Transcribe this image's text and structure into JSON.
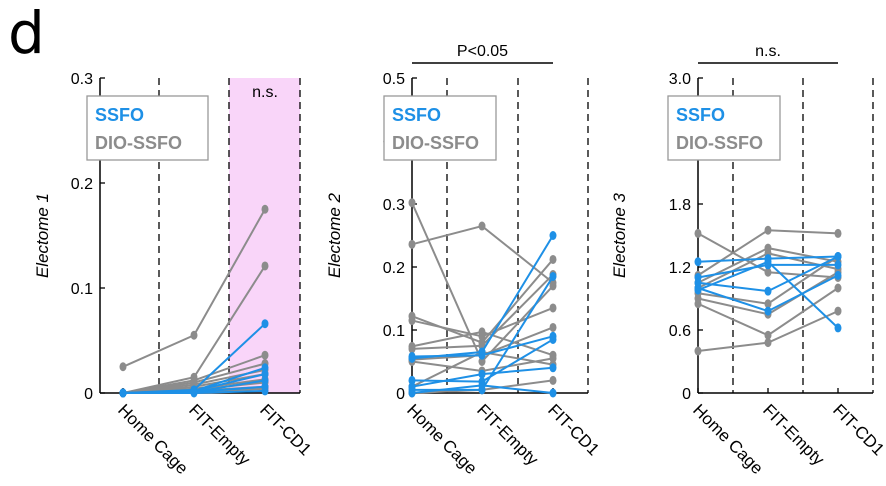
{
  "panel_label": "d",
  "colors": {
    "ssfo": "#1E90E6",
    "dio_ssfo": "#8C8C8C",
    "highlight": "#F9D5F9",
    "axis": "#000000"
  },
  "chart_data": [
    {
      "type": "line",
      "categories": [
        "Home Cage",
        "FIT-Empty",
        "FIT-CD1"
      ],
      "ylabel": "Electome 1",
      "ylim": [
        0,
        0.3
      ],
      "yticks": [
        0,
        0.1,
        0.2,
        0.3
      ],
      "yticklabels": [
        "0",
        "0.1",
        "0.2",
        "0.3"
      ],
      "legend": [
        "SSFO",
        "DIO-SSFO"
      ],
      "legend_placement": "top-left",
      "annotation": {
        "text": "n.s.",
        "placement": "over FIT-CD1 (highlighted)"
      },
      "highlight_category": "FIT-CD1",
      "series": [
        {
          "group": "DIO-SSFO",
          "values": [
            0.025,
            0.055,
            0.175
          ]
        },
        {
          "group": "DIO-SSFO",
          "values": [
            0,
            0.015,
            0.121
          ]
        },
        {
          "group": "DIO-SSFO",
          "values": [
            0,
            0.012,
            0.036
          ]
        },
        {
          "group": "DIO-SSFO",
          "values": [
            0,
            0.01,
            0.028
          ]
        },
        {
          "group": "DIO-SSFO",
          "values": [
            0,
            0.008,
            0.022
          ]
        },
        {
          "group": "DIO-SSFO",
          "values": [
            0,
            0.006,
            0.018
          ]
        },
        {
          "group": "DIO-SSFO",
          "values": [
            0,
            0.004,
            0.013
          ]
        },
        {
          "group": "DIO-SSFO",
          "values": [
            0,
            0.003,
            0.01
          ]
        },
        {
          "group": "DIO-SSFO",
          "values": [
            0,
            0.002,
            0.006
          ]
        },
        {
          "group": "DIO-SSFO",
          "values": [
            0,
            0.001,
            0.004
          ]
        },
        {
          "group": "SSFO",
          "values": [
            0,
            0.003,
            0.066
          ]
        },
        {
          "group": "SSFO",
          "values": [
            0,
            0.002,
            0.024
          ]
        },
        {
          "group": "SSFO",
          "values": [
            0,
            0.002,
            0.018
          ]
        },
        {
          "group": "SSFO",
          "values": [
            0,
            0.001,
            0.012
          ]
        },
        {
          "group": "SSFO",
          "values": [
            0,
            0.001,
            0.006
          ]
        },
        {
          "group": "SSFO",
          "values": [
            0,
            0,
            0.002
          ]
        }
      ]
    },
    {
      "type": "line",
      "categories": [
        "Home Cage",
        "FIT-Empty",
        "FIT-CD1"
      ],
      "ylabel": "Electome 2",
      "ylim": [
        0,
        0.5
      ],
      "yticks": [
        0,
        0.1,
        0.2,
        0.3,
        0.4,
        0.5
      ],
      "yticklabels": [
        "0",
        "0.1",
        "0.2",
        "0.3",
        "0.4",
        "0.5"
      ],
      "legend": [
        "SSFO",
        "DIO-SSFO"
      ],
      "legend_placement": "top-left",
      "annotation": {
        "text": "P<0.05",
        "placement": "bracket above all groups"
      },
      "series": [
        {
          "group": "DIO-SSFO",
          "values": [
            0.302,
            0.05,
            0.17
          ]
        },
        {
          "group": "DIO-SSFO",
          "values": [
            0.236,
            0.265,
            0.175
          ]
        },
        {
          "group": "DIO-SSFO",
          "values": [
            0.122,
            0.08,
            0.212
          ]
        },
        {
          "group": "DIO-SSFO",
          "values": [
            0.115,
            0.09,
            0.135
          ]
        },
        {
          "group": "DIO-SSFO",
          "values": [
            0.074,
            0.097,
            0.06
          ]
        },
        {
          "group": "DIO-SSFO",
          "values": [
            0.07,
            0.075,
            0.188
          ]
        },
        {
          "group": "DIO-SSFO",
          "values": [
            0.053,
            0.06,
            0.104
          ]
        },
        {
          "group": "DIO-SSFO",
          "values": [
            0.05,
            0.035,
            0.055
          ]
        },
        {
          "group": "DIO-SSFO",
          "values": [
            0.01,
            0.065,
            0.045
          ]
        },
        {
          "group": "DIO-SSFO",
          "values": [
            0,
            0.005,
            0.02
          ]
        },
        {
          "group": "SSFO",
          "values": [
            0.058,
            0.06,
            0.09
          ]
        },
        {
          "group": "SSFO",
          "values": [
            0.055,
            0.065,
            0.25
          ]
        },
        {
          "group": "SSFO",
          "values": [
            0.02,
            0.018,
            0.085
          ]
        },
        {
          "group": "SSFO",
          "values": [
            0.01,
            0.03,
            0.04
          ]
        },
        {
          "group": "SSFO",
          "values": [
            0.005,
            0.005,
            0.185
          ]
        },
        {
          "group": "SSFO",
          "values": [
            0,
            0.012,
            0
          ]
        }
      ]
    },
    {
      "type": "line",
      "categories": [
        "Home Cage",
        "FIT-Empty",
        "FIT-CD1"
      ],
      "ylabel": "Electome 3",
      "ylim": [
        0,
        3.0
      ],
      "yticks": [
        0,
        0.6,
        1.2,
        1.8,
        2.4,
        3.0
      ],
      "yticklabels": [
        "0",
        "0.6",
        "1.2",
        "1.8",
        "2.4",
        "3.0"
      ],
      "legend": [
        "SSFO",
        "DIO-SSFO"
      ],
      "legend_placement": "top-left",
      "annotation": {
        "text": "n.s.",
        "placement": "bracket above all groups"
      },
      "series": [
        {
          "group": "DIO-SSFO",
          "values": [
            1.52,
            1.15,
            1.1
          ]
        },
        {
          "group": "DIO-SSFO",
          "values": [
            1.12,
            1.55,
            1.52
          ]
        },
        {
          "group": "DIO-SSFO",
          "values": [
            1.05,
            1.38,
            1.25
          ]
        },
        {
          "group": "DIO-SSFO",
          "values": [
            1.0,
            1.33,
            1.18
          ]
        },
        {
          "group": "DIO-SSFO",
          "values": [
            0.95,
            0.85,
            1.3
          ]
        },
        {
          "group": "DIO-SSFO",
          "values": [
            0.9,
            0.75,
            1.15
          ]
        },
        {
          "group": "DIO-SSFO",
          "values": [
            0.85,
            0.55,
            1.0
          ]
        },
        {
          "group": "DIO-SSFO",
          "values": [
            0.4,
            0.48,
            0.78
          ]
        },
        {
          "group": "SSFO",
          "values": [
            1.25,
            1.28,
            1.3
          ]
        },
        {
          "group": "SSFO",
          "values": [
            1.1,
            1.22,
            1.22
          ]
        },
        {
          "group": "SSFO",
          "values": [
            1.05,
            0.97,
            1.3
          ]
        },
        {
          "group": "SSFO",
          "values": [
            1.0,
            0.78,
            1.12
          ]
        },
        {
          "group": "SSFO",
          "values": [
            0.98,
            1.25,
            0.62
          ]
        }
      ]
    }
  ]
}
